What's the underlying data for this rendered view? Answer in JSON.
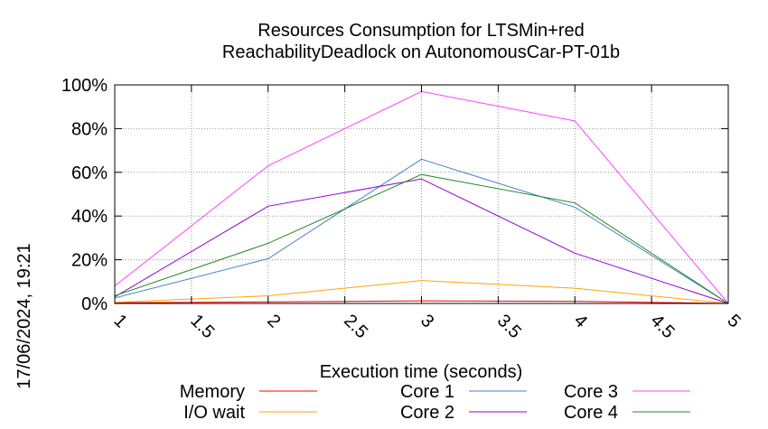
{
  "chart_data": {
    "type": "line",
    "title_lines": [
      "Resources Consumption for LTSMin+red",
      "ReachabilityDeadlock on AutonomousCar-PT-01b"
    ],
    "xlabel": "Execution time (seconds)",
    "ylabel": "",
    "side_label": "17/06/2024, 19:21",
    "xlim": [
      1,
      5
    ],
    "ylim": [
      0,
      100
    ],
    "x_ticks": [
      "1",
      "1.5",
      "2",
      "2.5",
      "3",
      "3.5",
      "4",
      "4.5",
      "5"
    ],
    "y_ticks": [
      "0%",
      "20%",
      "40%",
      "60%",
      "80%",
      "100%"
    ],
    "grid": true,
    "legend_position": "bottom",
    "series": [
      {
        "name": "Memory",
        "color": "#ff0000",
        "x": [
          1,
          2,
          3,
          4,
          5
        ],
        "values": [
          0.3,
          0.7,
          1.2,
          1.0,
          0
        ]
      },
      {
        "name": "I/O wait",
        "color": "#ffa500",
        "x": [
          1,
          2,
          3,
          4,
          5
        ],
        "values": [
          0.5,
          3.5,
          10.5,
          7.0,
          0
        ]
      },
      {
        "name": "Core 1",
        "color": "#4a7fd0",
        "x": [
          1,
          2,
          3,
          4,
          5
        ],
        "values": [
          2.5,
          20.5,
          66,
          44,
          0
        ]
      },
      {
        "name": "Core 2",
        "color": "#9400d3",
        "x": [
          1,
          2,
          3,
          4,
          5
        ],
        "values": [
          3,
          44.5,
          57,
          23,
          0
        ]
      },
      {
        "name": "Core 3",
        "color": "#ff40ff",
        "x": [
          1,
          2,
          3,
          4,
          5
        ],
        "values": [
          8,
          63,
          97,
          83.5,
          0
        ]
      },
      {
        "name": "Core 4",
        "color": "#228b22",
        "x": [
          1,
          2,
          3,
          4,
          5
        ],
        "values": [
          3.5,
          27.5,
          59,
          46,
          0
        ]
      }
    ]
  }
}
